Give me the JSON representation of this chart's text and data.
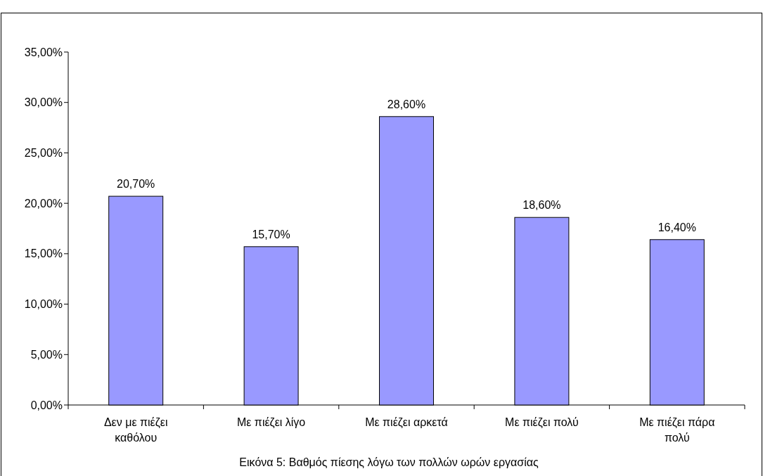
{
  "chart_data": {
    "type": "bar",
    "title": "Εικόνα 5: Βαθμός πίεσης λόγω των πολλών ωρών εργασίας",
    "categories": [
      "Δεν με πιέζει καθόλου",
      "Με πιέζει λίγο",
      "Με πιέζει αρκετά",
      "Με πιέζει πολύ",
      "Με πιέζει πάρα πολύ"
    ],
    "values": [
      20.7,
      15.7,
      28.6,
      18.6,
      16.4
    ],
    "value_labels": [
      "20,70%",
      "15,70%",
      "28,60%",
      "18,60%",
      "16,40%"
    ],
    "color": "#9999ff",
    "ylim": [
      0,
      35
    ],
    "yticks": [
      {
        "value": 0,
        "label": "0,00%"
      },
      {
        "value": 5,
        "label": "5,00%"
      },
      {
        "value": 10,
        "label": "10,00%"
      },
      {
        "value": 15,
        "label": "15,00%"
      },
      {
        "value": 20,
        "label": "20,00%"
      },
      {
        "value": 25,
        "label": "25,00%"
      },
      {
        "value": 30,
        "label": "30,00%"
      },
      {
        "value": 35,
        "label": "35,00%"
      }
    ],
    "grid": false
  }
}
